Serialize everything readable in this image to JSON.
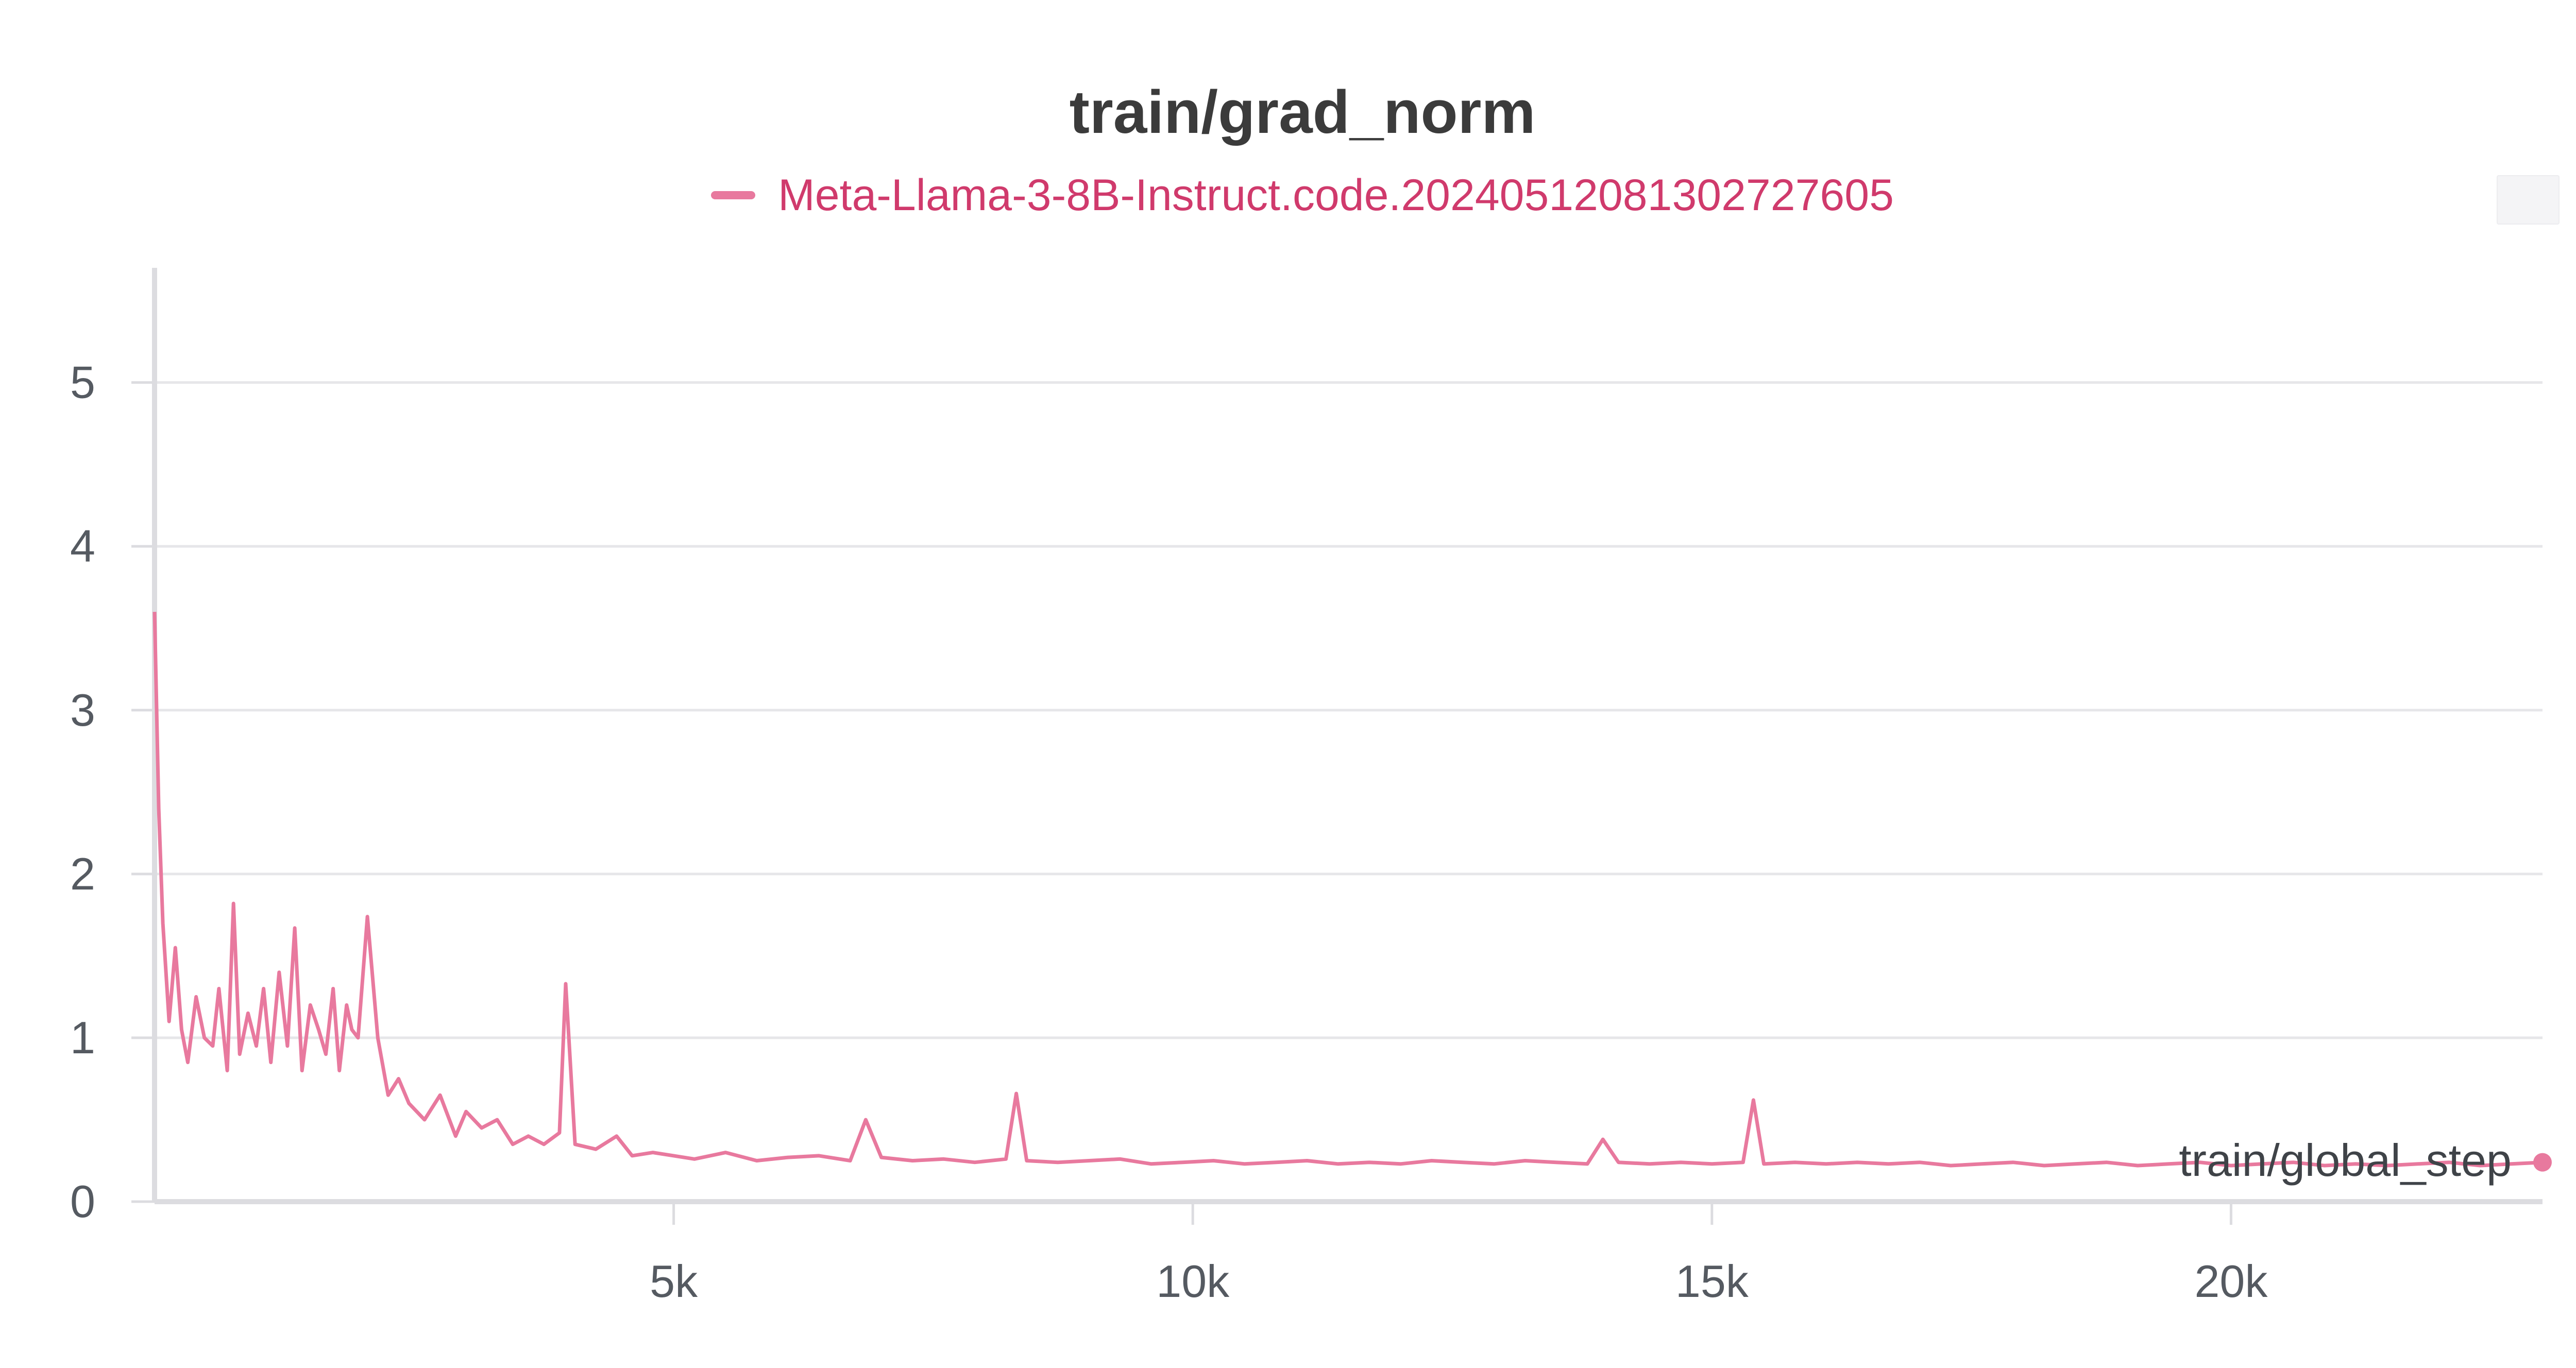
{
  "chart_data": {
    "type": "line",
    "title": "train/grad_norm",
    "xlabel": "train/global_step",
    "ylabel": "",
    "xlim": [
      0,
      23000
    ],
    "ylim": [
      0,
      5.7
    ],
    "xticks": [
      5000,
      10000,
      15000,
      20000
    ],
    "xtick_labels": [
      "5k",
      "10k",
      "15k",
      "20k"
    ],
    "yticks": [
      0,
      1,
      2,
      3,
      4,
      5
    ],
    "ytick_labels": [
      "0",
      "1",
      "2",
      "3",
      "4",
      "5"
    ],
    "grid": true,
    "legend_position": "top-center",
    "series": [
      {
        "name": "Meta-Llama-3-8B-Instruct.code.20240512081302727605",
        "color": "#e8799e",
        "x": [
          0,
          40,
          80,
          140,
          200,
          260,
          320,
          400,
          480,
          560,
          620,
          700,
          760,
          820,
          900,
          980,
          1050,
          1120,
          1200,
          1280,
          1350,
          1420,
          1500,
          1580,
          1650,
          1720,
          1780,
          1850,
          1900,
          1960,
          2050,
          2150,
          2250,
          2350,
          2450,
          2600,
          2750,
          2900,
          3000,
          3150,
          3300,
          3450,
          3600,
          3750,
          3900,
          3960,
          4050,
          4250,
          4450,
          4600,
          4800,
          5000,
          5200,
          5500,
          5800,
          6100,
          6400,
          6700,
          6850,
          7000,
          7300,
          7600,
          7900,
          8200,
          8300,
          8400,
          8700,
          9000,
          9300,
          9600,
          9900,
          10200,
          10500,
          10800,
          11100,
          11400,
          11700,
          12000,
          12300,
          12600,
          12900,
          13200,
          13500,
          13800,
          13950,
          14100,
          14400,
          14700,
          15000,
          15300,
          15400,
          15500,
          15800,
          16100,
          16400,
          16700,
          17000,
          17300,
          17600,
          17900,
          18200,
          18500,
          18800,
          19100,
          19400,
          19700,
          20000,
          20300,
          20600,
          20900,
          21200,
          21500,
          21800,
          22100,
          22400,
          22700,
          23000
        ],
        "values": [
          3.6,
          2.4,
          1.7,
          1.1,
          1.55,
          1.05,
          0.85,
          1.25,
          1.0,
          0.95,
          1.3,
          0.8,
          1.82,
          0.9,
          1.15,
          0.95,
          1.3,
          0.85,
          1.4,
          0.95,
          1.67,
          0.8,
          1.2,
          1.05,
          0.9,
          1.3,
          0.8,
          1.2,
          1.05,
          1.0,
          1.74,
          1.0,
          0.65,
          0.75,
          0.6,
          0.5,
          0.65,
          0.4,
          0.55,
          0.45,
          0.5,
          0.35,
          0.4,
          0.35,
          0.42,
          1.33,
          0.35,
          0.32,
          0.4,
          0.28,
          0.3,
          0.28,
          0.26,
          0.3,
          0.25,
          0.27,
          0.28,
          0.25,
          0.5,
          0.27,
          0.25,
          0.26,
          0.24,
          0.26,
          0.66,
          0.25,
          0.24,
          0.25,
          0.26,
          0.23,
          0.24,
          0.25,
          0.23,
          0.24,
          0.25,
          0.23,
          0.24,
          0.23,
          0.25,
          0.24,
          0.23,
          0.25,
          0.24,
          0.23,
          0.38,
          0.24,
          0.23,
          0.24,
          0.23,
          0.24,
          0.62,
          0.23,
          0.24,
          0.23,
          0.24,
          0.23,
          0.24,
          0.22,
          0.23,
          0.24,
          0.22,
          0.23,
          0.24,
          0.22,
          0.23,
          0.24,
          0.22,
          0.23,
          0.24,
          0.22,
          0.23,
          0.22,
          0.23,
          0.24,
          0.22,
          0.23,
          0.24
        ]
      }
    ]
  }
}
